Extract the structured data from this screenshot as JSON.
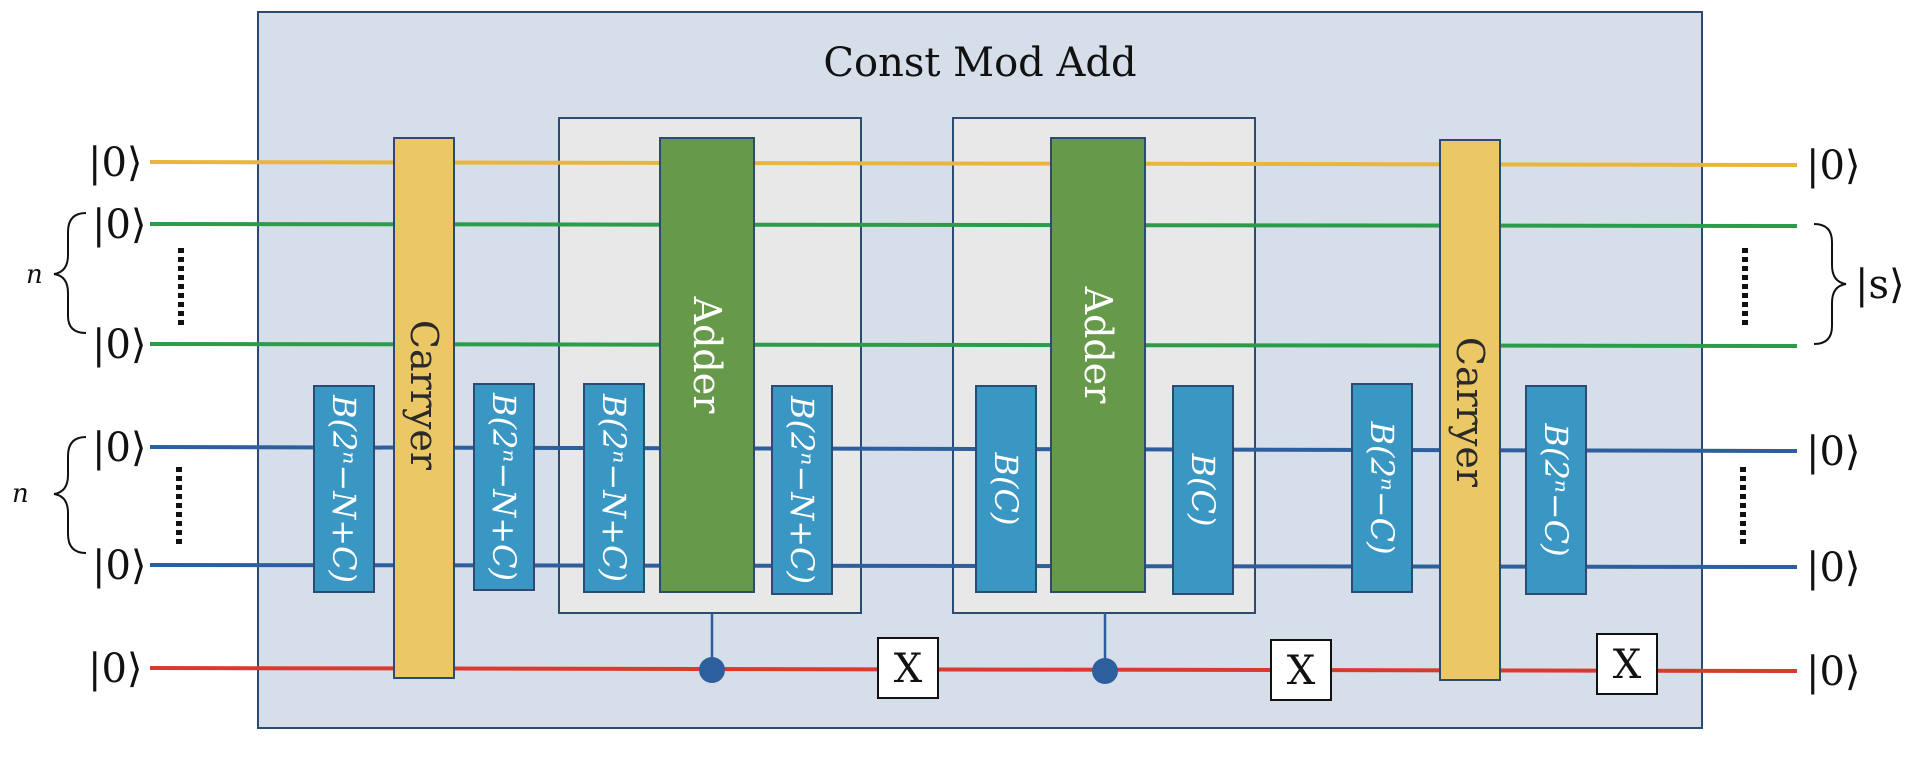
{
  "title": "Const Mod Add",
  "register_labels": {
    "n_top": "n",
    "n_bottom": "n",
    "s_out": "|s⟩"
  },
  "kets": {
    "in_q1": "|0⟩",
    "in_g_top": "|0⟩",
    "in_g_bot": "|0⟩",
    "in_b_top": "|0⟩",
    "in_b_bot": "|0⟩",
    "in_r": "|0⟩",
    "out_q1": "|0⟩",
    "out_b_top": "|0⟩",
    "out_b_bot": "|0⟩",
    "out_r": "|0⟩"
  },
  "gates": {
    "carryer_left": "Carryer",
    "carryer_right": "Carryer",
    "adder_left": "Adder",
    "adder_right": "Adder",
    "b1": "B(2ⁿ−N+C)",
    "b2": "B(2ⁿ−N+C)",
    "b3": "B(2ⁿ−N+C)",
    "b4": "B(2ⁿ−N+C)",
    "b5": "B(C)",
    "b6": "B(C)",
    "b7": "B(2ⁿ−C)",
    "b8": "B(2ⁿ−C)",
    "x1": "X",
    "x2": "X",
    "x3": "X"
  },
  "colors": {
    "outer_panel": "#d5dee9",
    "inner_panel": "#e8e8e8",
    "wire_orange": "#e8b63d",
    "wire_green": "#2a9c4a",
    "wire_blue": "#2d5f9e",
    "wire_red": "#d93a2e",
    "carryer": "#ebc865",
    "adder": "#67994a",
    "bgate": "#3a97c4"
  }
}
